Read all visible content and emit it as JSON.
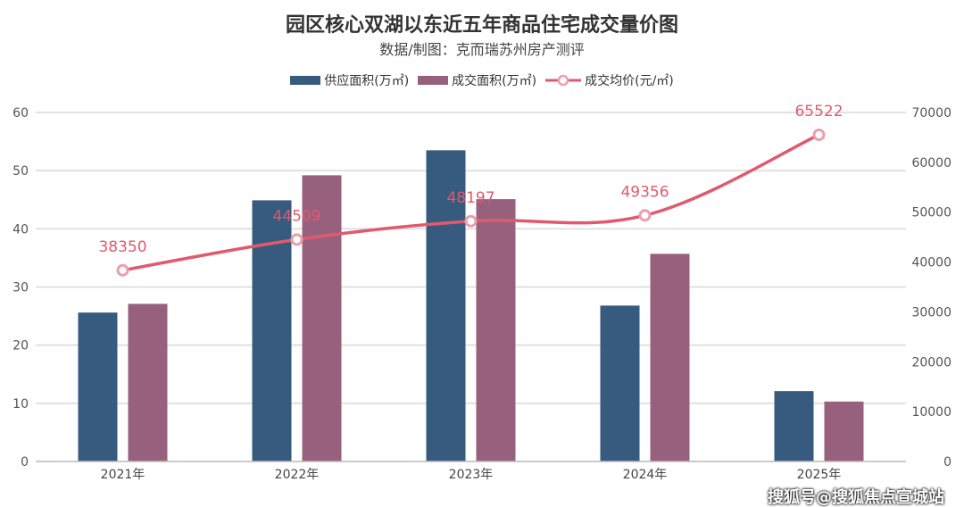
{
  "chart_data": {
    "type": "bar",
    "title": "园区核心双湖以东近五年商品住宅成交量价图",
    "subtitle": "数据/制图：克而瑞苏州房产测评",
    "categories": [
      "2021年",
      "2022年",
      "2023年",
      "2024年",
      "2025年"
    ],
    "series": [
      {
        "name": "供应面积(万㎡)",
        "type": "bar",
        "axis": "left",
        "color": "#375a7f",
        "values": [
          25.6,
          44.9,
          53.5,
          26.8,
          12.1
        ]
      },
      {
        "name": "成交面积(万㎡)",
        "type": "bar",
        "axis": "left",
        "color": "#97617e",
        "values": [
          27.1,
          49.2,
          45.1,
          35.7,
          10.3
        ]
      },
      {
        "name": "成交均价(元/㎡)",
        "type": "line",
        "axis": "right",
        "color": "#e05a6e",
        "values": [
          38350,
          44509,
          48197,
          49356,
          65522
        ],
        "labels": [
          "38350",
          "44509",
          "48197",
          "49356",
          "65522"
        ]
      }
    ],
    "left_axis": {
      "ylim": [
        0,
        60
      ],
      "ticks": [
        "0",
        "10",
        "20",
        "30",
        "40",
        "50",
        "60"
      ]
    },
    "right_axis": {
      "ylim": [
        0,
        70000
      ],
      "ticks": [
        "0",
        "10000",
        "20000",
        "30000",
        "40000",
        "50000",
        "60000",
        "70000"
      ]
    },
    "grid": true,
    "legend": "top"
  },
  "footer": "搜狐号@搜狐焦点宣城站"
}
